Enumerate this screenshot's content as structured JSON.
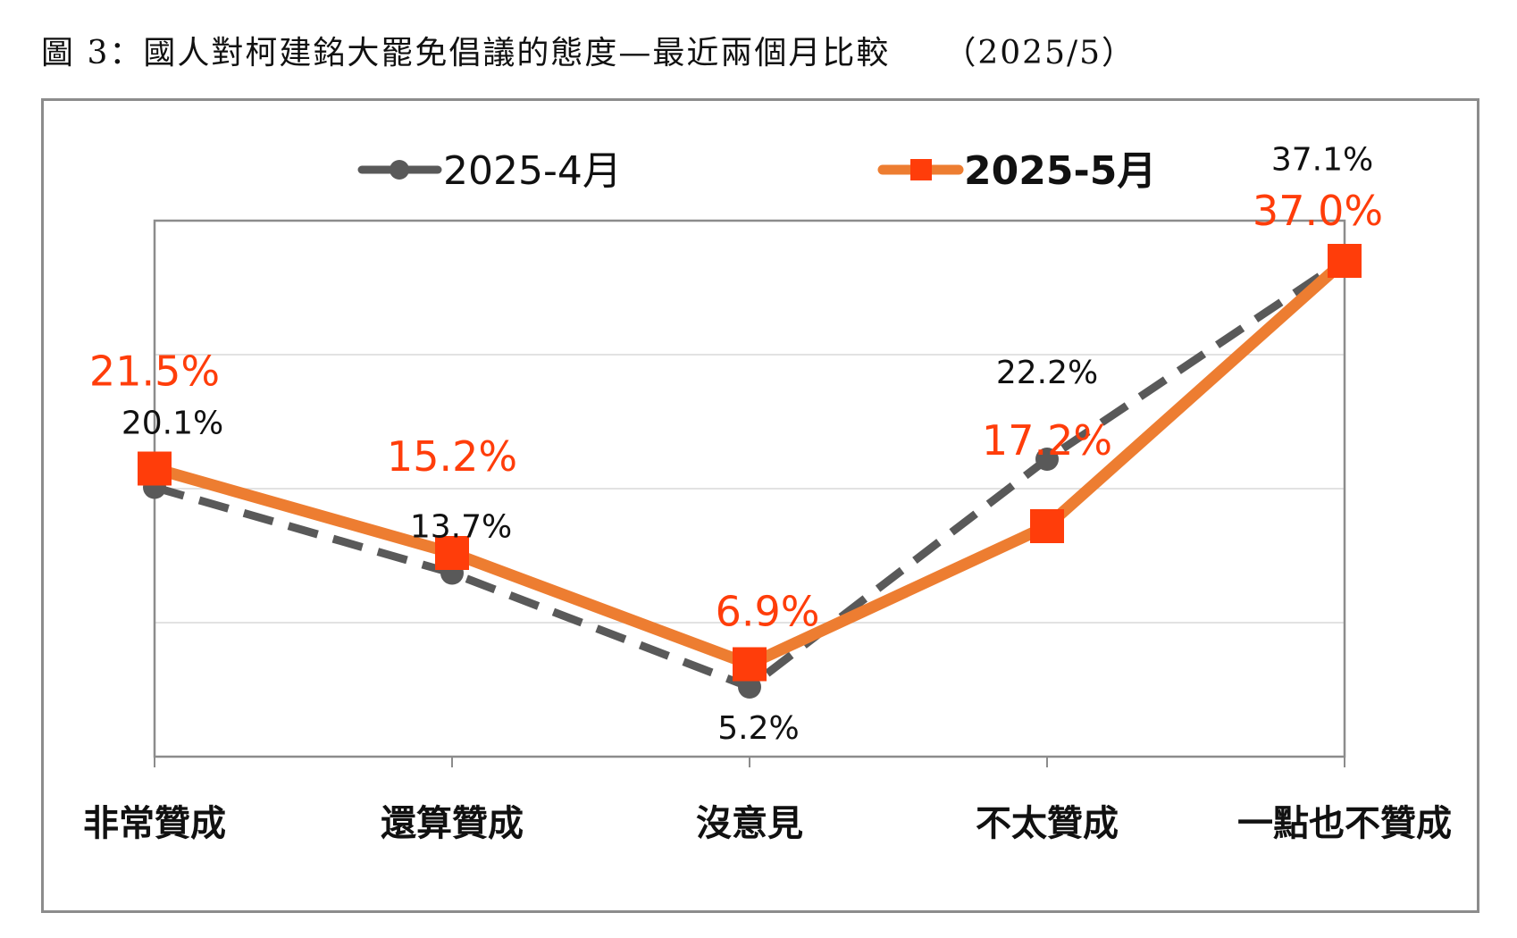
{
  "figure": {
    "title": "圖 3：國人對柯建銘大罷免倡議的態度—最近兩個月比較",
    "period": "（2025/5）"
  },
  "colors": {
    "series_a_line": "#595959",
    "series_a_marker": "#595959",
    "series_b_line": "#ed7d31",
    "series_b_marker": "#ff3d0a",
    "series_b_label": "#ff3d0a",
    "gridline": "#d9d9d9",
    "plot_border": "#8c8c8c"
  },
  "chart_data": {
    "type": "line",
    "categories": [
      "非常贊成",
      "還算贊成",
      "沒意見",
      "不太贊成",
      "一點也不贊成"
    ],
    "series": [
      {
        "name": "2025-4月",
        "values": [
          20.1,
          13.7,
          5.2,
          22.2,
          37.1
        ],
        "labels": [
          "20.1%",
          "13.7%",
          "5.2%",
          "22.2%",
          "37.1%"
        ],
        "line_style": "dashed",
        "marker": "circle"
      },
      {
        "name": "2025-5月",
        "values": [
          21.5,
          15.2,
          6.9,
          17.2,
          37.0
        ],
        "labels": [
          "21.5%",
          "15.2%",
          "6.9%",
          "17.2%",
          "37.0%"
        ],
        "line_style": "solid",
        "marker": "square"
      }
    ],
    "ylim": [
      0,
      40
    ],
    "grid": true,
    "legend_position": "top-center",
    "xlabel": "",
    "ylabel": ""
  }
}
